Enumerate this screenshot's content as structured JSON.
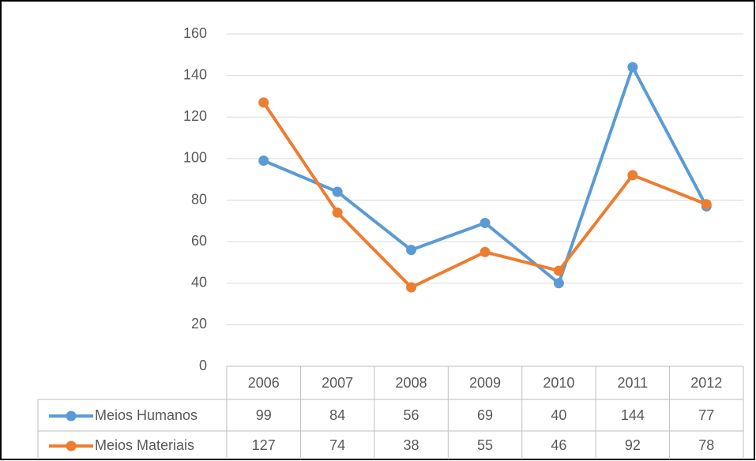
{
  "chart_data": {
    "type": "line",
    "categories": [
      "2006",
      "2007",
      "2008",
      "2009",
      "2010",
      "2011",
      "2012"
    ],
    "series": [
      {
        "name": "Meios Humanos",
        "color": "#5b9bd5",
        "values": [
          99,
          84,
          56,
          69,
          40,
          144,
          77
        ]
      },
      {
        "name": "Meios Materiais",
        "color": "#ed7d31",
        "values": [
          127,
          74,
          38,
          55,
          46,
          92,
          78
        ]
      }
    ],
    "ylim": [
      0,
      160
    ],
    "yticks": [
      0,
      20,
      40,
      60,
      80,
      100,
      120,
      140,
      160
    ],
    "grid": true,
    "data_table": true
  }
}
